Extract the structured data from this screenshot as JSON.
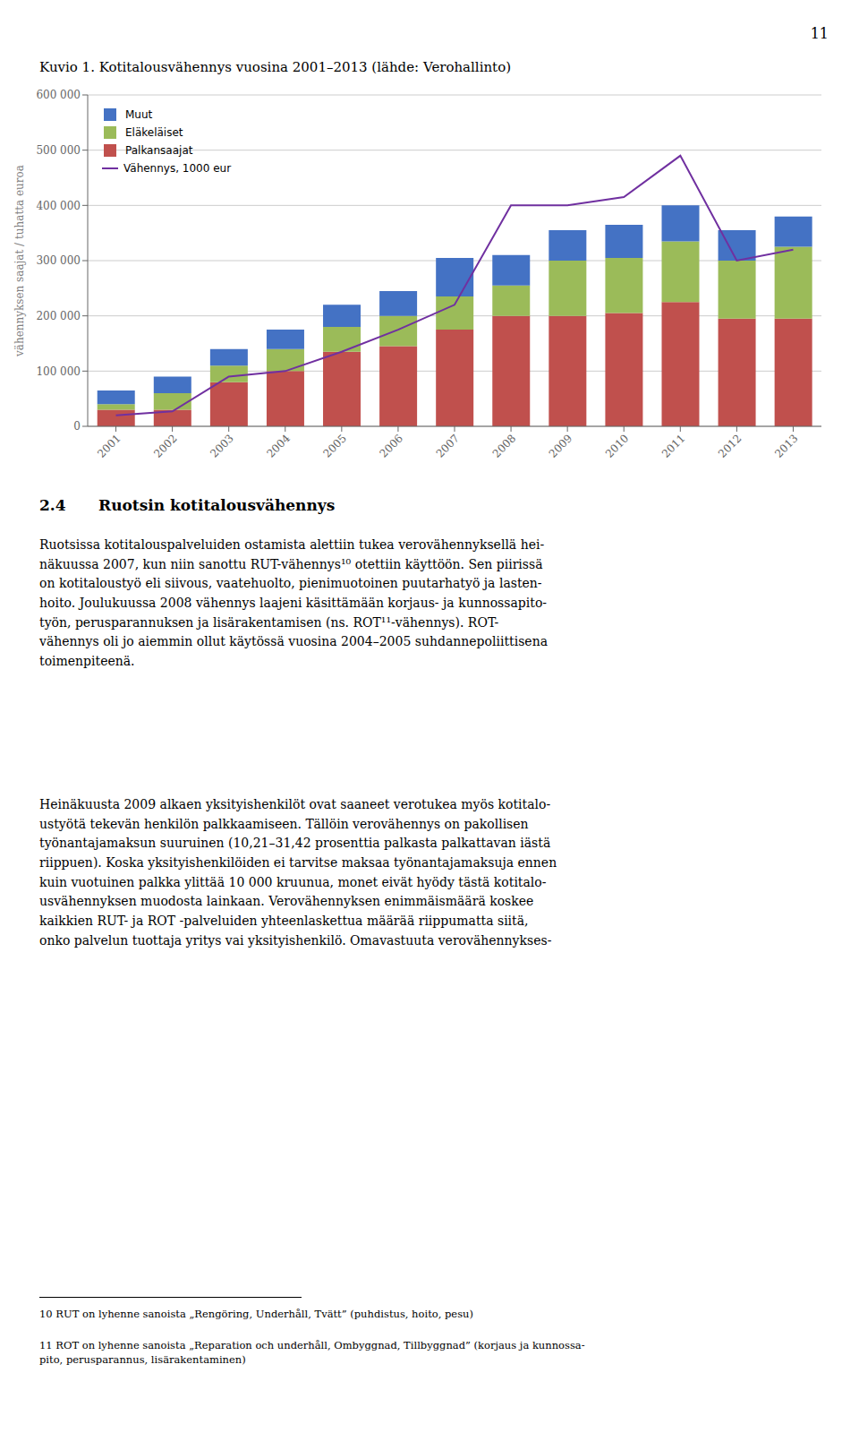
{
  "chart_data": {
    "type": "bar",
    "title": "Kuvio 1. Kotitalousvähennys vuosina 2001–2013 (lähde: Verohallinto)",
    "ylabel": "vähennyksen saajat / tuhatta euroa",
    "categories": [
      "2001",
      "2002",
      "2003",
      "2004",
      "2005",
      "2006",
      "2007",
      "2008",
      "2009",
      "2010",
      "2011",
      "2012",
      "2013"
    ],
    "series": [
      {
        "name": "Palkansaajat",
        "type": "bar",
        "color": "#C0504D",
        "values": [
          30000,
          30000,
          80000,
          100000,
          135000,
          145000,
          175000,
          200000,
          200000,
          205000,
          225000,
          195000,
          195000
        ]
      },
      {
        "name": "Eläkeläiset",
        "type": "bar",
        "color": "#9BBB59",
        "values": [
          10000,
          30000,
          30000,
          40000,
          45000,
          55000,
          60000,
          55000,
          100000,
          100000,
          110000,
          105000,
          130000
        ]
      },
      {
        "name": "Muut",
        "type": "bar",
        "color": "#4472C4",
        "values": [
          25000,
          30000,
          30000,
          35000,
          40000,
          45000,
          70000,
          55000,
          55000,
          60000,
          65000,
          55000,
          55000
        ]
      },
      {
        "name": "Vähennys, 1000 eur",
        "type": "line",
        "color": "#7030A0",
        "values": [
          20000,
          27000,
          90000,
          100000,
          135000,
          175000,
          220000,
          400000,
          400000,
          415000,
          490000,
          300000,
          320000
        ]
      }
    ],
    "stacked": true,
    "ylim": [
      0,
      600000
    ],
    "yticks": [
      0,
      {
        "value": 100000,
        "label": "100 000"
      },
      {
        "value": 200000,
        "label": "200 000"
      },
      {
        "value": 300000,
        "label": "300 000"
      },
      {
        "value": 400000,
        "label": "400 000"
      },
      {
        "value": 500000,
        "label": "500 000"
      },
      {
        "value": 600000,
        "label": "600 000"
      }
    ],
    "grid": true,
    "legend": "upper left",
    "annotations": [
      "11",
      "2.4",
      "Ruotsin kotitalousvähennys",
      "Ruotsissa kotitalouspalveluiden ostamista alettiin tukea verovähennyksellä hei-\nnäkuussa 2007, kun niin sanottu RUT-vähennys¹⁰ otettiin käyttöön. Sen piirissä\non kotitaloustyö eli siivous, vaatehuolto, pienimuotoinen puutarhatyö ja lasten-\nhoito. Joulukuussa 2008 vähennys laajeni käsittämään korjaus- ja kunnossapito-\ntyön, perusparannuksen ja lisärakentamisen (ns. ROT¹¹-vähennys). ROT-\nvähennys oli jo aiemmin ollut käytössä vuosina 2004–2005 suhdannepoliittisena\ntoimenpiteenä.",
      "Heinäkuusta 2009 alkaen yksityishenkilöt ovat saaneet verotukea myös kotitalo-\nustyötä tekevän henkilön palkkaamiseen. Tällöin verovähennys on pakollisen\ntyönantajamaksun suuruinen (10,21–31,42 prosenttia palkasta palkattavan iästä\nriippuen). Koska yksityishenkilöiden ei tarvitse maksaa työnantajamaksuja ennen\nkuin vuotuinen palkka ylittää 10 000 kruunua, monet eivät hyödy tästä kotitalo-\nusvähennyksen muodosta lainkaan. Verovähennyksen enimmäismäärä koskee\nkaikkien RUT- ja ROT -palveluiden yhteenlaskettua määrää riippumatta siitä,\nonko palvelun tuottaja yritys vai yksityishenkilö. Omavastuuta verovähennykses-",
      "10 RUT on lyhenne sanoista „Rengöring, Underhåll, Tvätt” (puhdistus, hoito, pesu)",
      "11 ROT on lyhenne sanoista „Reparation och underhåll, Ombyggnad, Tillbyggnad” (korjaus ja kunnossa-\npito, perusparannus, lisärakentaminen)"
    ]
  }
}
